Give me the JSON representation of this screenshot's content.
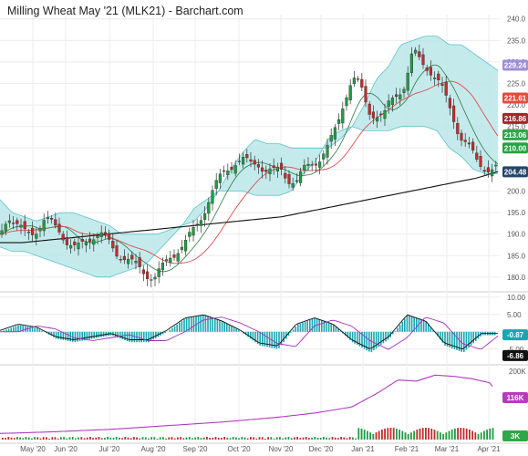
{
  "title": "Milling Wheat May '21 (MLK21) - Barchart.com",
  "chart_data": [
    {
      "type": "candlestick",
      "name": "price",
      "title": "Milling Wheat May '21 (MLK21) - Barchart.com",
      "x_labels": [
        "May '20",
        "Jun '20",
        "Jul '20",
        "Aug '20",
        "Sep '20",
        "Oct '20",
        "Nov '20",
        "Dec '20",
        "Jan '21",
        "Feb '21",
        "Mar '21",
        "Apr '21"
      ],
      "y_ticks": [
        180,
        185,
        190,
        195,
        200,
        205,
        210,
        215,
        220,
        225,
        230,
        235,
        240
      ],
      "ylim": [
        177,
        241
      ],
      "overlays": [
        "bollinger-bands",
        "moving-average-short",
        "moving-average-medium",
        "moving-average-long"
      ],
      "price_path": [
        [
          0,
          190
        ],
        [
          6,
          195
        ],
        [
          12,
          192
        ],
        [
          18,
          190
        ],
        [
          26,
          191
        ],
        [
          34,
          193
        ],
        [
          40,
          192
        ],
        [
          46,
          191
        ],
        [
          52,
          188
        ],
        [
          58,
          186
        ],
        [
          64,
          188
        ],
        [
          70,
          190
        ],
        [
          76,
          190
        ],
        [
          82,
          188
        ],
        [
          88,
          186
        ],
        [
          94,
          185
        ],
        [
          100,
          183
        ],
        [
          106,
          182
        ],
        [
          112,
          181
        ],
        [
          118,
          180
        ],
        [
          124,
          182
        ],
        [
          130,
          185
        ],
        [
          136,
          187
        ],
        [
          142,
          188
        ],
        [
          148,
          191
        ],
        [
          154,
          195
        ],
        [
          160,
          199
        ],
        [
          166,
          202
        ],
        [
          172,
          205
        ],
        [
          178,
          207
        ],
        [
          184,
          207
        ],
        [
          190,
          206
        ],
        [
          196,
          207
        ],
        [
          202,
          205
        ],
        [
          208,
          204
        ],
        [
          214,
          205
        ],
        [
          220,
          203
        ],
        [
          226,
          202
        ],
        [
          232,
          205
        ],
        [
          238,
          207
        ],
        [
          244,
          208
        ],
        [
          250,
          210
        ],
        [
          256,
          215
        ],
        [
          262,
          222
        ],
        [
          268,
          226
        ],
        [
          274,
          224
        ],
        [
          280,
          219
        ],
        [
          286,
          218
        ],
        [
          292,
          217
        ],
        [
          296,
          220
        ],
        [
          302,
          223
        ],
        [
          308,
          225
        ],
        [
          314,
          232
        ],
        [
          320,
          230
        ],
        [
          326,
          229
        ],
        [
          332,
          226
        ],
        [
          338,
          222
        ],
        [
          344,
          218
        ],
        [
          350,
          213
        ],
        [
          356,
          210
        ],
        [
          362,
          207
        ],
        [
          368,
          206
        ],
        [
          374,
          205
        ],
        [
          380,
          205
        ]
      ],
      "bands_upper": [
        198,
        195,
        194,
        193,
        194,
        195,
        195,
        194,
        193,
        192,
        190,
        190,
        190,
        190,
        191,
        192,
        193,
        196,
        200,
        205,
        209,
        212,
        211,
        211,
        210,
        210,
        210,
        210,
        212,
        215,
        220,
        226,
        229,
        234,
        235,
        236,
        236,
        234,
        234,
        232,
        230,
        228
      ],
      "bands_lower": [
        187,
        186,
        186,
        185,
        184,
        183,
        182,
        181,
        180,
        180,
        181,
        182,
        183,
        186,
        189,
        192,
        196,
        198,
        200,
        200,
        200,
        199,
        199,
        199,
        200,
        204,
        207,
        212,
        214,
        215,
        214,
        214,
        214,
        215,
        215,
        215,
        214,
        210,
        208,
        205,
        204,
        204
      ],
      "long_ma": [
        188,
        188,
        188.5,
        189,
        189.5,
        190,
        190.5,
        191,
        191.5,
        192,
        192.5,
        193,
        193.5,
        194,
        195,
        196,
        197,
        198,
        199,
        200,
        201,
        202,
        203,
        204.5
      ],
      "price_tags": [
        {
          "value": "229.24",
          "color": "#9e8fd6"
        },
        {
          "value": "221.61",
          "color": "#e44b3d"
        },
        {
          "value": "216.86",
          "color": "#a5262a"
        },
        {
          "value": "213.06",
          "color": "#2ea84a"
        },
        {
          "value": "210.00",
          "color": "#26a33e"
        },
        {
          "value": "204.48",
          "color": "#23466e"
        }
      ]
    },
    {
      "type": "histogram",
      "name": "macd",
      "y_ticks": [
        10.0,
        5.0,
        0.0,
        -5.0
      ],
      "ylim": [
        -9,
        11
      ],
      "price_tags": [
        {
          "value": "-0.87",
          "color": "#16a7b2"
        },
        {
          "value": "-6.86",
          "color": "#111111"
        }
      ],
      "hist_path": [
        [
          0,
          0
        ],
        [
          20,
          2
        ],
        [
          40,
          1
        ],
        [
          60,
          -2
        ],
        [
          80,
          -3
        ],
        [
          100,
          -2
        ],
        [
          120,
          -1
        ],
        [
          140,
          -3
        ],
        [
          160,
          -3
        ],
        [
          180,
          0
        ],
        [
          200,
          4
        ],
        [
          220,
          5
        ],
        [
          240,
          3
        ],
        [
          260,
          0
        ],
        [
          280,
          -4
        ],
        [
          300,
          -5
        ],
        [
          320,
          2
        ],
        [
          340,
          4
        ],
        [
          360,
          2
        ],
        [
          380,
          -3
        ],
        [
          400,
          -6
        ],
        [
          420,
          -2
        ],
        [
          440,
          5
        ],
        [
          460,
          3
        ],
        [
          480,
          -4
        ],
        [
          500,
          -6
        ],
        [
          520,
          -1
        ],
        [
          540,
          -1
        ]
      ]
    },
    {
      "type": "area",
      "name": "open-interest",
      "y_ticks": [
        "200K",
        "100K"
      ],
      "price_tags": [
        {
          "value": "116K",
          "color": "#b83bbd"
        },
        {
          "value": "3K",
          "color": "#2ea84a"
        }
      ],
      "oi_path": [
        [
          0,
          1
        ],
        [
          60,
          4
        ],
        [
          120,
          8
        ],
        [
          180,
          14
        ],
        [
          240,
          20
        ],
        [
          300,
          28
        ],
        [
          340,
          35
        ],
        [
          380,
          45
        ],
        [
          410,
          70
        ],
        [
          430,
          90
        ],
        [
          450,
          88
        ],
        [
          470,
          98
        ],
        [
          490,
          96
        ],
        [
          510,
          92
        ],
        [
          530,
          85
        ],
        [
          540,
          58
        ]
      ]
    }
  ],
  "colors": {
    "band_fill": "#bfe8ea",
    "band_line": "#5bc2c9",
    "candle_up": "#1d9e41",
    "candle_down": "#c52b2b",
    "ma_red": "#dc4d4d",
    "ma_black": "#111111",
    "macd_pos": "#18a6b0",
    "macd_signal": "#a22fbe",
    "oi_line": "#b23ac0"
  }
}
